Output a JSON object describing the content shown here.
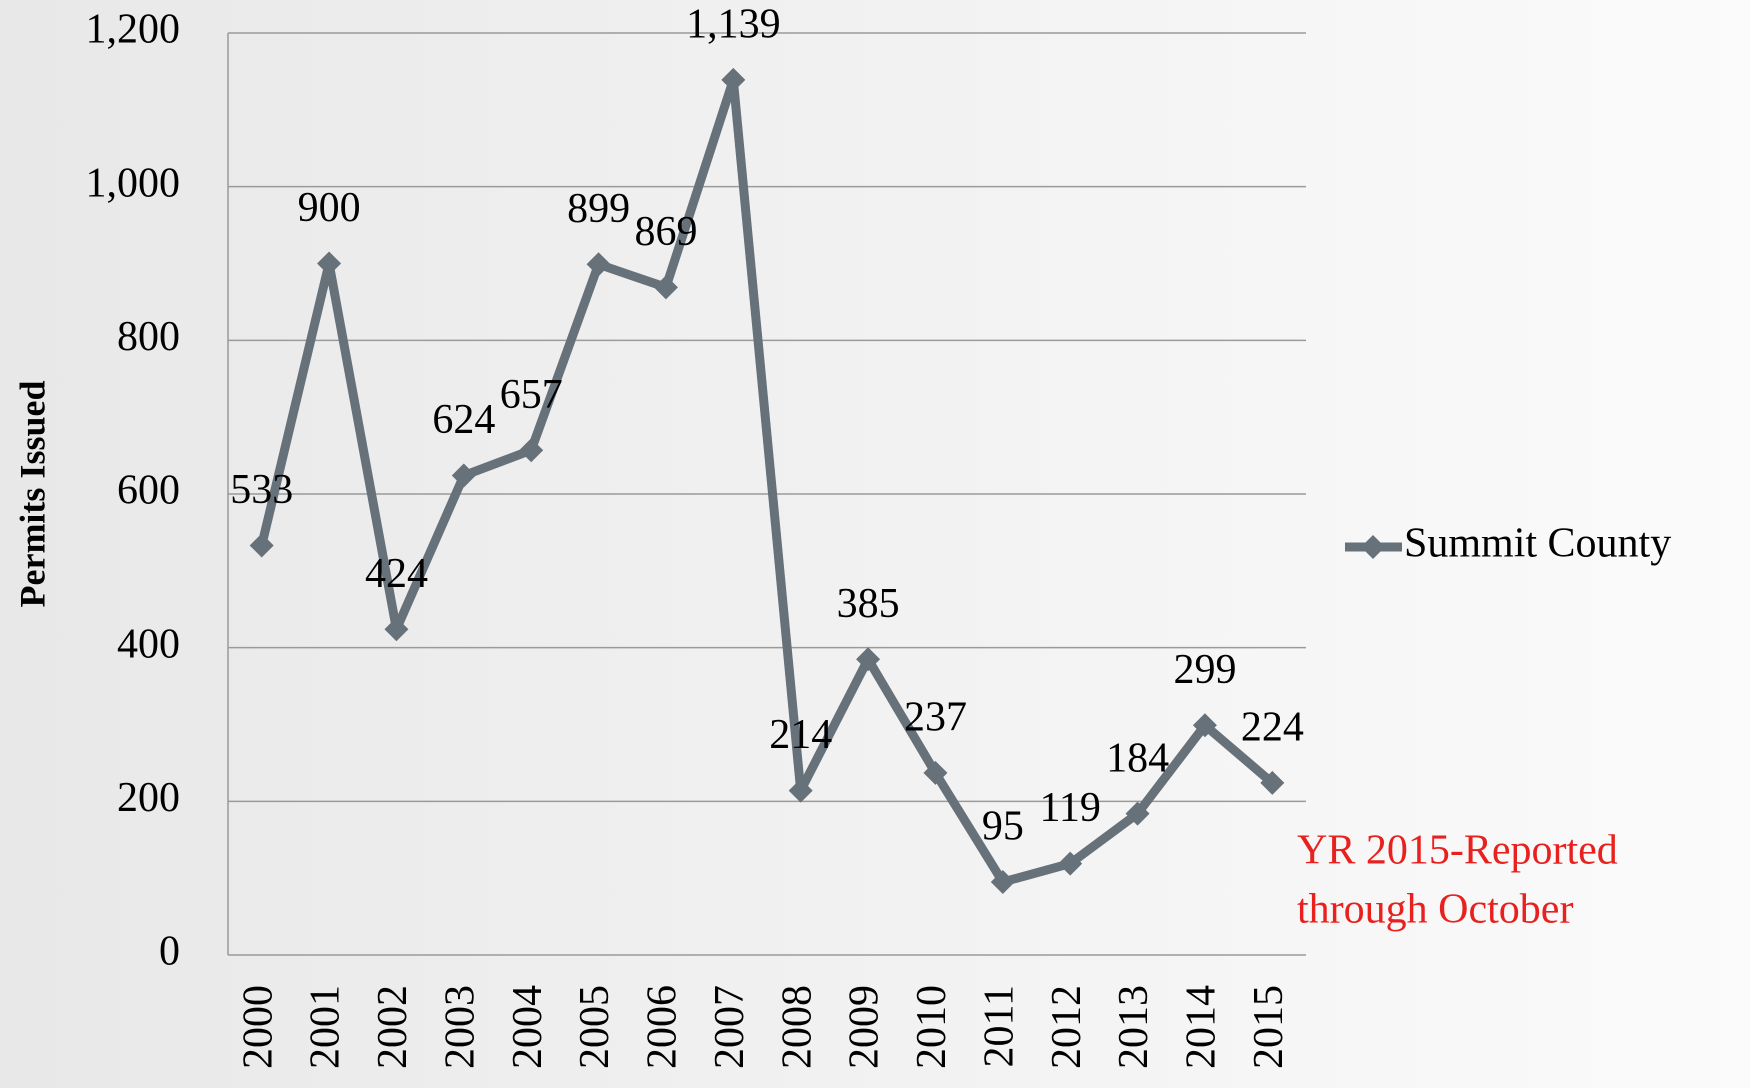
{
  "chart_data": {
    "type": "line",
    "y_label": "Permits Issued",
    "categories": [
      "2000",
      "2001",
      "2002",
      "2003",
      "2004",
      "2005",
      "2006",
      "2007",
      "2008",
      "2009",
      "2010",
      "2011",
      "2012",
      "2013",
      "2014",
      "2015"
    ],
    "series": [
      {
        "name": "Summit County",
        "color": "#677179",
        "values": [
          533,
          900,
          424,
          624,
          657,
          899,
          869,
          1139,
          214,
          385,
          237,
          95,
          119,
          184,
          299,
          224
        ],
        "value_labels": [
          "533",
          "900",
          "424",
          "624",
          "657",
          "899",
          "869",
          "1,139",
          "214",
          "385",
          "237",
          "95",
          "119",
          "184",
          "299",
          "224"
        ]
      }
    ],
    "ylim": [
      0,
      1200
    ],
    "yticks": [
      0,
      200,
      400,
      600,
      800,
      {
        "value": 1000,
        "label": "1,000"
      },
      {
        "value": 1200,
        "label": "1,200"
      }
    ],
    "grid": true,
    "legend": "right",
    "annotation": [
      "YR 2015-Reported",
      "through October"
    ],
    "annotation_color": "#e8211f"
  }
}
